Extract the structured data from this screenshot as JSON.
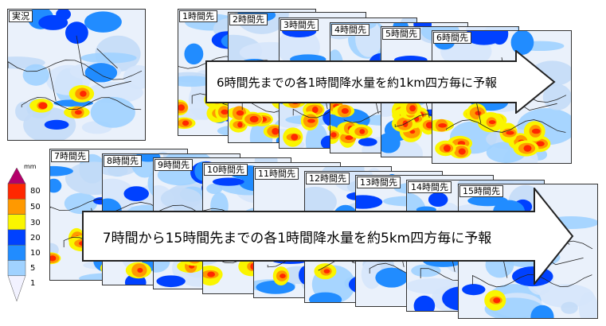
{
  "row1": {
    "panels": [
      {
        "label": "実況",
        "variant": "a"
      },
      {
        "label": "1時間先",
        "variant": "b"
      },
      {
        "label": "2時間先",
        "variant": "c"
      },
      {
        "label": "3時間先",
        "variant": "d"
      },
      {
        "label": "4時間先",
        "variant": "e"
      },
      {
        "label": "5時間先",
        "variant": "f"
      },
      {
        "label": "6時間先",
        "variant": "g"
      }
    ],
    "banner": "6時間先までの各1時間降水量を約1km四方毎に予報"
  },
  "row2": {
    "panels": [
      {
        "label": "7時間先",
        "variant": "h"
      },
      {
        "label": "8時間先",
        "variant": "i"
      },
      {
        "label": "9時間先",
        "variant": "j"
      },
      {
        "label": "10時間先",
        "variant": "k"
      },
      {
        "label": "11時間先",
        "variant": "l"
      },
      {
        "label": "12時間先",
        "variant": "m"
      },
      {
        "label": "13時間先",
        "variant": "n"
      },
      {
        "label": "14時間先",
        "variant": "o"
      },
      {
        "label": "15時間先",
        "variant": "p"
      }
    ],
    "banner": "7時間から15時間先までの各1時間降水量を約5km四方毎に予報"
  },
  "legend": {
    "unit": "mm",
    "labels": [
      "80",
      "50",
      "30",
      "20",
      "10",
      "5",
      "1"
    ],
    "colors": [
      "#b4006a",
      "#ff2800",
      "#ff9900",
      "#faf500",
      "#0041ff",
      "#218cff",
      "#a0d2ff",
      "#f2f2ff"
    ]
  }
}
